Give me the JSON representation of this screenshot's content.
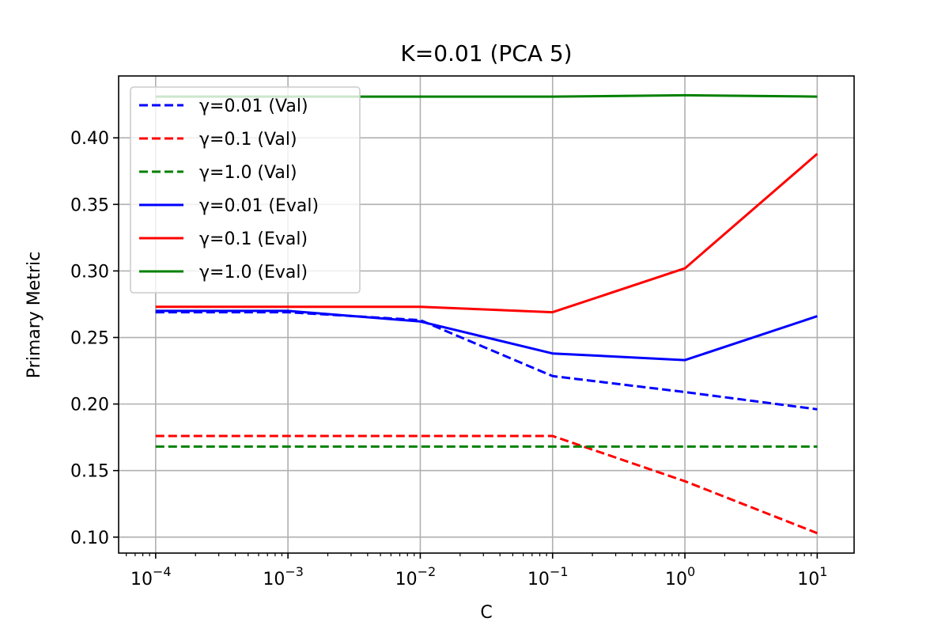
{
  "chart_data": {
    "type": "line",
    "title": "K=0.01 (PCA 5)",
    "xlabel": "C",
    "ylabel": "Primary Metric",
    "xscale": "log",
    "x": [
      0.0001,
      0.001,
      0.01,
      0.1,
      1,
      10
    ],
    "xtick_labels": [
      {
        "base": "10",
        "exp": "−4"
      },
      {
        "base": "10",
        "exp": "−3"
      },
      {
        "base": "10",
        "exp": "−2"
      },
      {
        "base": "10",
        "exp": "−1"
      },
      {
        "base": "10",
        "exp": "0"
      },
      {
        "base": "10",
        "exp": "1"
      }
    ],
    "yticks": [
      0.1,
      0.15,
      0.2,
      0.25,
      0.3,
      0.35,
      0.4
    ],
    "ytick_labels": [
      "0.10",
      "0.15",
      "0.20",
      "0.25",
      "0.30",
      "0.35",
      "0.40"
    ],
    "xlim": [
      5.25e-05,
      19
    ],
    "ylim": [
      0.088,
      0.4465
    ],
    "grid": true,
    "legend_position": "upper-left",
    "series": [
      {
        "name": "γ=0.01 (Val)",
        "color": "#0000ff",
        "style": "dashed",
        "values": [
          0.269,
          0.269,
          0.263,
          0.221,
          0.209,
          0.196
        ]
      },
      {
        "name": "γ=0.1 (Val)",
        "color": "#ff0000",
        "style": "dashed",
        "values": [
          0.176,
          0.176,
          0.176,
          0.176,
          0.142,
          0.103
        ]
      },
      {
        "name": "γ=1.0 (Val)",
        "color": "#008000",
        "style": "dashed",
        "values": [
          0.168,
          0.168,
          0.168,
          0.168,
          0.168,
          0.168
        ]
      },
      {
        "name": "γ=0.01 (Eval)",
        "color": "#0000ff",
        "style": "solid",
        "values": [
          0.27,
          0.27,
          0.262,
          0.238,
          0.233,
          0.266
        ]
      },
      {
        "name": "γ=0.1 (Eval)",
        "color": "#ff0000",
        "style": "solid",
        "values": [
          0.273,
          0.273,
          0.273,
          0.269,
          0.302,
          0.388
        ]
      },
      {
        "name": "γ=1.0 (Eval)",
        "color": "#008000",
        "style": "solid",
        "values": [
          0.431,
          0.431,
          0.431,
          0.431,
          0.432,
          0.431
        ]
      }
    ]
  }
}
